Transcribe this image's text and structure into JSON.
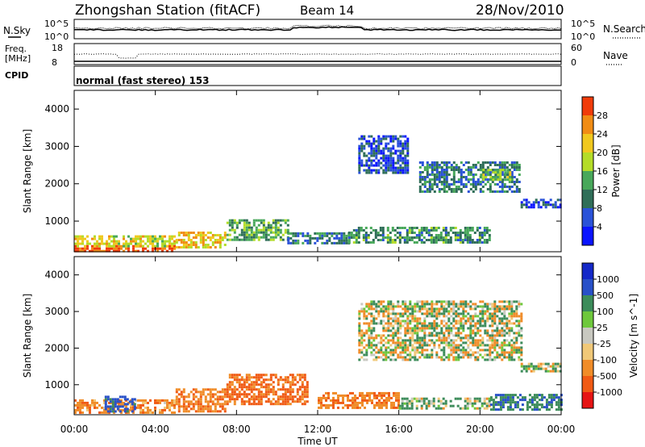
{
  "header": {
    "station": "Zhongshan Station (fitACF)",
    "beam": "Beam 14",
    "date": "28/Nov/2010"
  },
  "summary": {
    "left_labels": {
      "nsky": "N.Sky",
      "freq": "Freq.",
      "freq_unit": "[MHz]",
      "cpid": "CPID"
    },
    "right_labels": {
      "nsearch": "N.Search",
      "nave": "Nave"
    },
    "noise_ticks_left": [
      "10^5",
      "10^0"
    ],
    "noise_ticks_right": [
      "10^5",
      "10^0"
    ],
    "freq_ticks": [
      "18",
      "8"
    ],
    "nave_ticks": [
      "60",
      "0"
    ],
    "cpid_text": "normal (fast stereo) 153"
  },
  "chart_data": [
    {
      "type": "heatmap",
      "name": "power",
      "xlabel": "",
      "ylabel": "Slant Range [km]",
      "xlim": [
        0,
        24
      ],
      "ylim": [
        180,
        4500
      ],
      "yticks": [
        1000,
        2000,
        3000,
        4000
      ],
      "colorbar": {
        "label": "Power [dB]",
        "levels": [
          0,
          4,
          8,
          12,
          16,
          20,
          24,
          28,
          32
        ],
        "tick_labels": [
          "4",
          "8",
          "12",
          "16",
          "20",
          "24",
          "28"
        ],
        "colors": [
          "#0a14ff",
          "#2a52d8",
          "#2f6e58",
          "#48a85a",
          "#b4dc28",
          "#f0c81e",
          "#f08c14",
          "#f03c0a"
        ]
      },
      "regions": [
        {
          "t0": 0.0,
          "t1": 5.0,
          "r0": 220,
          "r1": 360,
          "level": 30
        },
        {
          "t0": 0.0,
          "t1": 5.0,
          "r0": 360,
          "r1": 620,
          "level": 20
        },
        {
          "t0": 5.0,
          "t1": 7.5,
          "r0": 280,
          "r1": 720,
          "level": 22
        },
        {
          "t0": 7.5,
          "t1": 10.5,
          "r0": 500,
          "r1": 1050,
          "level": 14
        },
        {
          "t0": 10.5,
          "t1": 13.5,
          "r0": 400,
          "r1": 700,
          "level": 10
        },
        {
          "t0": 13.5,
          "t1": 20.5,
          "r0": 450,
          "r1": 850,
          "level": 12
        },
        {
          "t0": 14.0,
          "t1": 16.5,
          "r0": 2300,
          "r1": 3300,
          "level": 6
        },
        {
          "t0": 17.0,
          "t1": 22.0,
          "r0": 1800,
          "r1": 2600,
          "level": 10
        },
        {
          "t0": 20.0,
          "t1": 21.5,
          "r0": 2100,
          "r1": 2400,
          "level": 16
        },
        {
          "t0": 22.0,
          "t1": 24.0,
          "r0": 1350,
          "r1": 1600,
          "level": 6
        }
      ]
    },
    {
      "type": "heatmap",
      "name": "velocity",
      "xlabel": "Time UT",
      "ylabel": "Slant Range [km]",
      "xlim": [
        0,
        24
      ],
      "ylim": [
        180,
        4500
      ],
      "yticks": [
        1000,
        2000,
        3000,
        4000
      ],
      "xticks": [
        "00:00",
        "04:00",
        "08:00",
        "12:00",
        "16:00",
        "20:00",
        "00:00"
      ],
      "colorbar": {
        "label": "Velocity [m s^-1]",
        "levels": [
          -2000,
          -1000,
          -500,
          -100,
          -25,
          25,
          100,
          500,
          1000,
          2000
        ],
        "tick_labels": [
          "-1000",
          "-500",
          "-100",
          "-25",
          "25",
          "100",
          "500",
          "1000"
        ],
        "colors": [
          "#e61414",
          "#f05a14",
          "#f08c28",
          "#f0c878",
          "#c8c8c0",
          "#6ec83c",
          "#3c8c5a",
          "#2850c8",
          "#1428c8"
        ]
      },
      "regions": [
        {
          "t0": 0.0,
          "t1": 5.0,
          "r0": 220,
          "r1": 600,
          "value": -300
        },
        {
          "t0": 1.5,
          "t1": 3.0,
          "r0": 250,
          "r1": 700,
          "value": 700
        },
        {
          "t0": 5.0,
          "t1": 7.5,
          "r0": 300,
          "r1": 900,
          "value": -400
        },
        {
          "t0": 7.5,
          "t1": 11.5,
          "r0": 500,
          "r1": 1300,
          "value": -600
        },
        {
          "t0": 12.0,
          "t1": 16.0,
          "r0": 350,
          "r1": 800,
          "value": -400
        },
        {
          "t0": 16.0,
          "t1": 20.5,
          "r0": 350,
          "r1": 650,
          "value": 150
        },
        {
          "t0": 20.5,
          "t1": 24.0,
          "r0": 300,
          "r1": 750,
          "value": 400
        },
        {
          "t0": 14.0,
          "t1": 22.0,
          "r0": 1700,
          "r1": 3300,
          "value": 0
        },
        {
          "t0": 22.0,
          "t1": 24.0,
          "r0": 1350,
          "r1": 1600,
          "value": 0
        }
      ]
    }
  ]
}
